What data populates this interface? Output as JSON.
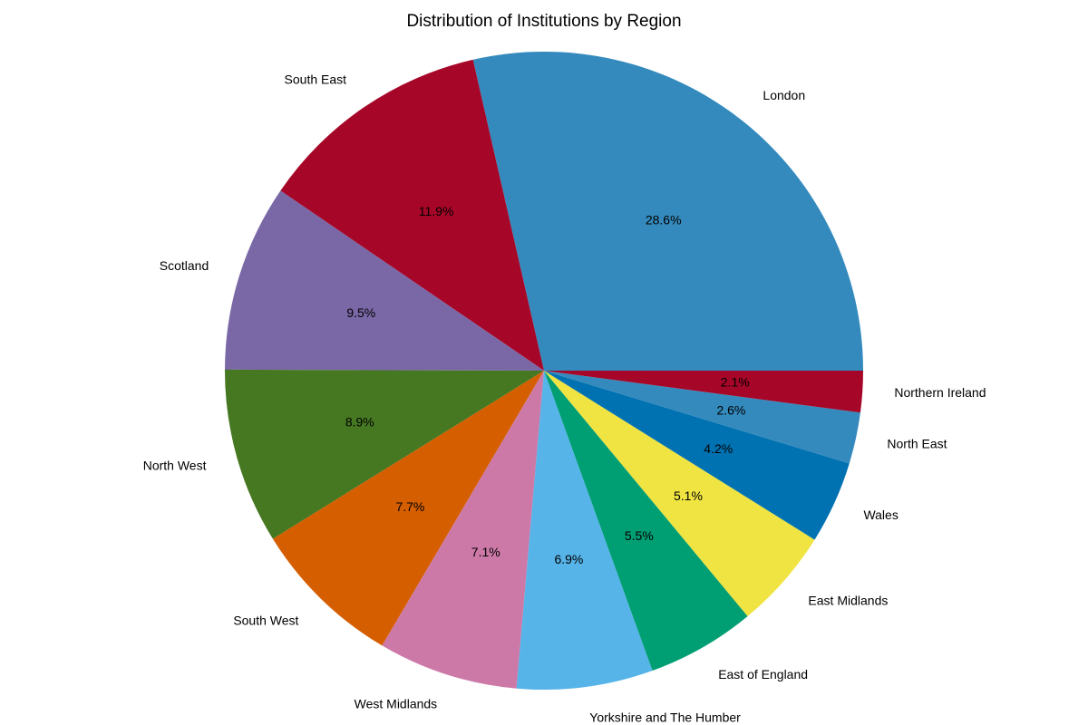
{
  "chart_data": {
    "type": "pie",
    "title": "Distribution of Institutions by Region",
    "start_angle_deg": 0,
    "direction": "counterclockwise",
    "slices": [
      {
        "label": "London",
        "value": 28.6,
        "pct_label": "28.6%",
        "color": "#348ABD"
      },
      {
        "label": "South East",
        "value": 11.9,
        "pct_label": "11.9%",
        "color": "#A60628"
      },
      {
        "label": "Scotland",
        "value": 9.5,
        "pct_label": "9.5%",
        "color": "#7A68A6"
      },
      {
        "label": "North West",
        "value": 8.9,
        "pct_label": "8.9%",
        "color": "#467821"
      },
      {
        "label": "South West",
        "value": 7.7,
        "pct_label": "7.7%",
        "color": "#D55E00"
      },
      {
        "label": "West Midlands",
        "value": 7.1,
        "pct_label": "7.1%",
        "color": "#CC79A7"
      },
      {
        "label": "Yorkshire and The Humber",
        "value": 6.9,
        "pct_label": "6.9%",
        "color": "#56B4E9"
      },
      {
        "label": "East of England",
        "value": 5.5,
        "pct_label": "5.5%",
        "color": "#009E73"
      },
      {
        "label": "East Midlands",
        "value": 5.1,
        "pct_label": "5.1%",
        "color": "#F0E442"
      },
      {
        "label": "Wales",
        "value": 4.2,
        "pct_label": "4.2%",
        "color": "#0072B2"
      },
      {
        "label": "North East",
        "value": 2.6,
        "pct_label": "2.6%",
        "color": "#348ABD"
      },
      {
        "label": "Northern Ireland",
        "value": 2.1,
        "pct_label": "2.1%",
        "color": "#A60628"
      }
    ]
  }
}
